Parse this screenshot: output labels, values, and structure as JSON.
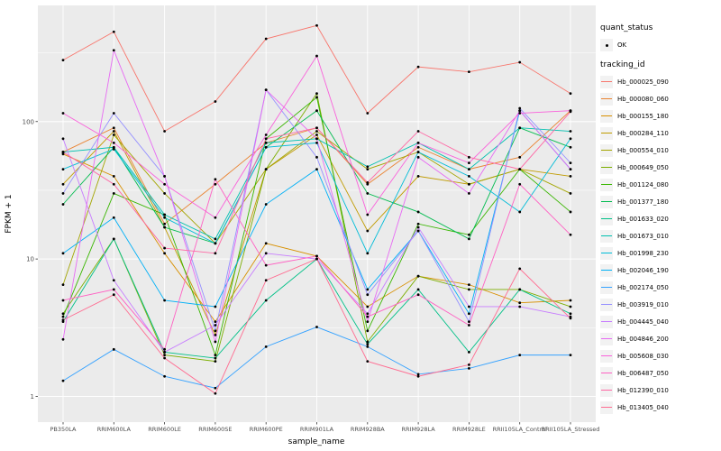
{
  "figure": {
    "background": "#FFFFFF",
    "panel_color": "#EBEBEB",
    "grid_color": "#FFFFFF"
  },
  "legend": {
    "quant_title": "quant_status",
    "quant_items": [
      {
        "label": "OK",
        "shape": "point"
      }
    ],
    "tracking_title": "tracking_id"
  },
  "chart_data": {
    "type": "line",
    "title": "",
    "xlabel": "sample_name",
    "ylabel": "FPKM + 1",
    "log_y": true,
    "ylim": [
      0.65,
      700
    ],
    "y_ticks": [
      1,
      10,
      100
    ],
    "y_tick_labels": [
      "1",
      "10",
      "100"
    ],
    "y_minor": [
      3.162,
      31.62,
      316.2
    ],
    "grid": true,
    "legend_position": "right",
    "point_color": "#000000",
    "categories": [
      "PB350LA",
      "RRIM600LA",
      "RRIM600LE",
      "RRIM600SE",
      "RRIM600PE",
      "RRIM901LA",
      "RRIM928BA",
      "RRIM928LA",
      "RRIM928LE",
      "RRII105LA_Control",
      "RRII105LA_Stressed"
    ],
    "series": [
      {
        "name": "Hb_000025_090",
        "color": "#F8766D",
        "values": [
          280,
          450,
          85,
          140,
          400,
          500,
          115,
          250,
          230,
          270,
          160
        ]
      },
      {
        "name": "Hb_000080_060",
        "color": "#EA8331",
        "values": [
          60,
          90,
          18,
          35,
          70,
          90,
          35,
          65,
          45,
          55,
          120
        ]
      },
      {
        "name": "Hb_000155_180",
        "color": "#D89000",
        "values": [
          58,
          40,
          11,
          3.5,
          13,
          10.5,
          4.5,
          7.5,
          6.5,
          4.8,
          5
        ]
      },
      {
        "name": "Hb_000284_110",
        "color": "#C09B00",
        "values": [
          35,
          85,
          17,
          2.8,
          45,
          80,
          16,
          40,
          35,
          45,
          40
        ]
      },
      {
        "name": "Hb_000554_010",
        "color": "#A3A500",
        "values": [
          6.5,
          80,
          30,
          13,
          45,
          85,
          45,
          60,
          35,
          45,
          30
        ]
      },
      {
        "name": "Hb_000649_050",
        "color": "#7CAE00",
        "values": [
          4,
          14,
          2,
          1.8,
          45,
          160,
          2.5,
          7.5,
          6,
          6,
          4.5
        ]
      },
      {
        "name": "Hb_001124_080",
        "color": "#39B600",
        "values": [
          3.8,
          30,
          21,
          2,
          75,
          150,
          3,
          18,
          15,
          45,
          22
        ]
      },
      {
        "name": "Hb_001377_180",
        "color": "#00BB4E",
        "values": [
          25,
          65,
          17,
          13,
          65,
          120,
          30,
          22,
          14,
          90,
          65
        ]
      },
      {
        "name": "Hb_001633_020",
        "color": "#00C087",
        "values": [
          3.5,
          14,
          2.1,
          1.9,
          5,
          10,
          2.4,
          6,
          2.1,
          6,
          4
        ]
      },
      {
        "name": "Hb_001673_010",
        "color": "#00C0AF",
        "values": [
          60,
          65,
          21,
          14,
          70,
          75,
          47,
          70,
          45,
          90,
          85
        ]
      },
      {
        "name": "Hb_001998_230",
        "color": "#00BCD8",
        "values": [
          45,
          63,
          20,
          13,
          65,
          70,
          11,
          60,
          40,
          22,
          75
        ]
      },
      {
        "name": "Hb_002046_190",
        "color": "#00B0F6",
        "values": [
          11,
          20,
          5,
          4.5,
          25,
          45,
          6,
          16,
          4,
          120,
          45
        ]
      },
      {
        "name": "Hb_002174_050",
        "color": "#35A2FF",
        "values": [
          1.3,
          2.2,
          1.4,
          1.15,
          2.3,
          3.2,
          2.3,
          1.45,
          1.6,
          2,
          2
        ]
      },
      {
        "name": "Hb_003919_010",
        "color": "#9590FF",
        "values": [
          30,
          115,
          40,
          3,
          170,
          55,
          5.5,
          16,
          3.5,
          125,
          50
        ]
      },
      {
        "name": "Hb_004445_040",
        "color": "#C77CFF",
        "values": [
          75,
          7,
          2.1,
          3.3,
          11,
          10,
          4,
          17,
          4.5,
          4.5,
          3.8
        ]
      },
      {
        "name": "Hb_004846_200",
        "color": "#E76BF3",
        "values": [
          2.6,
          330,
          40,
          2.5,
          170,
          75,
          3.5,
          55,
          30,
          120,
          45
        ]
      },
      {
        "name": "Hb_005608_030",
        "color": "#FA62DB",
        "values": [
          115,
          70,
          35,
          20,
          80,
          300,
          21,
          70,
          50,
          115,
          120
        ]
      },
      {
        "name": "Hb_006487_050",
        "color": "#FF61C3",
        "values": [
          5,
          6,
          2.2,
          38,
          9,
          10.5,
          3.8,
          5.5,
          3.3,
          35,
          15
        ]
      },
      {
        "name": "Hb_012390_010",
        "color": "#FF67A4",
        "values": [
          60,
          35,
          12,
          11,
          75,
          90,
          36,
          85,
          55,
          45,
          118
        ]
      },
      {
        "name": "Hb_013405_040",
        "color": "#FF6C91",
        "values": [
          3.6,
          5.5,
          1.9,
          1.05,
          7,
          10,
          1.8,
          1.4,
          1.7,
          8.5,
          3.7
        ]
      }
    ]
  }
}
